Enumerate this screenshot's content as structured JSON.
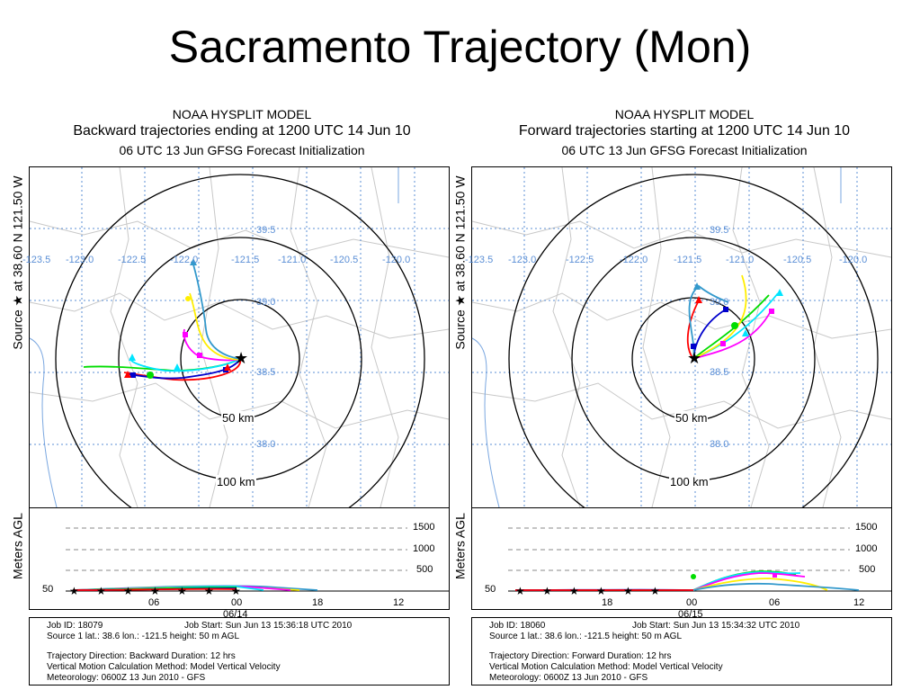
{
  "slide": {
    "title": "Sacramento Trajectory (Mon)"
  },
  "panels": [
    {
      "model": "NOAA HYSPLIT MODEL",
      "trajectory_title": "Backward trajectories ending at 1200 UTC 14 Jun 10",
      "init_line": "06 UTC 13 Jun    GFSG  Forecast Initialization",
      "source_label": "Source ★ at   38.60 N  121.50 W",
      "meters_label": "Meters AGL",
      "rings": [
        "50 km",
        "100 km"
      ],
      "lon_labels": [
        "-123.5",
        "-123.0",
        "-122.5",
        "-122.0",
        "-121.5",
        "-121.0",
        "-120.5",
        "-120.0"
      ],
      "lat_labels": [
        "39.5",
        "39.0",
        "38.5",
        "38.0"
      ],
      "height_ticks": [
        "1500",
        "1000",
        "500"
      ],
      "base_height": "50",
      "time_ticks": [
        "06",
        "00",
        "18",
        "12"
      ],
      "date_label": "06/14",
      "info": {
        "job_id": "Job ID: 18079",
        "job_start": "Job Start: Sun Jun 13 15:36:18 UTC 2010",
        "source": "Source 1      lat.: 38.6     lon.: -121.5      height: 50 m AGL",
        "direction": "Trajectory Direction: Backward      Duration: 12 hrs",
        "vertical": "Vertical Motion Calculation Method:       Model Vertical Velocity",
        "meteorology": "Meteorology: 0600Z 13 Jun 2010 - GFS"
      }
    },
    {
      "model": "NOAA HYSPLIT MODEL",
      "trajectory_title": "Forward trajectories starting at 1200 UTC 14 Jun 10",
      "init_line": "06 UTC 13 Jun    GFSG  Forecast Initialization",
      "source_label": "Source ★ at   38.60 N  121.50 W",
      "meters_label": "Meters AGL",
      "rings": [
        "50 km",
        "100 km"
      ],
      "lon_labels": [
        "-123.5",
        "-123.0",
        "-122.5",
        "-122.0",
        "-121.5",
        "-121.0",
        "-120.5",
        "-120.0"
      ],
      "lat_labels": [
        "39.5",
        "39.0",
        "38.5",
        "38.0"
      ],
      "height_ticks": [
        "1500",
        "1000",
        "500"
      ],
      "base_height": "50",
      "time_ticks": [
        "18",
        "00",
        "06",
        "12"
      ],
      "date_label": "06/15",
      "info": {
        "job_id": "Job ID: 18060",
        "job_start": "Job Start: Sun Jun 13 15:34:32 UTC 2010",
        "source": "Source 1      lat.: 38.6     lon.: -121.5      height: 50 m AGL",
        "direction": "Trajectory Direction: Forward      Duration: 12 hrs",
        "vertical": "Vertical Motion Calculation Method:       Model Vertical Velocity",
        "meteorology": "Meteorology: 0600Z 13 Jun 2010 - GFS"
      }
    }
  ],
  "colors": {
    "trajectories": [
      "#ff0000",
      "#0000cc",
      "#00dd00",
      "#00e5ff",
      "#ff00ff",
      "#ffee00",
      "#3399cc"
    ],
    "grid": "#5b8fd6",
    "rings": "#000000"
  }
}
